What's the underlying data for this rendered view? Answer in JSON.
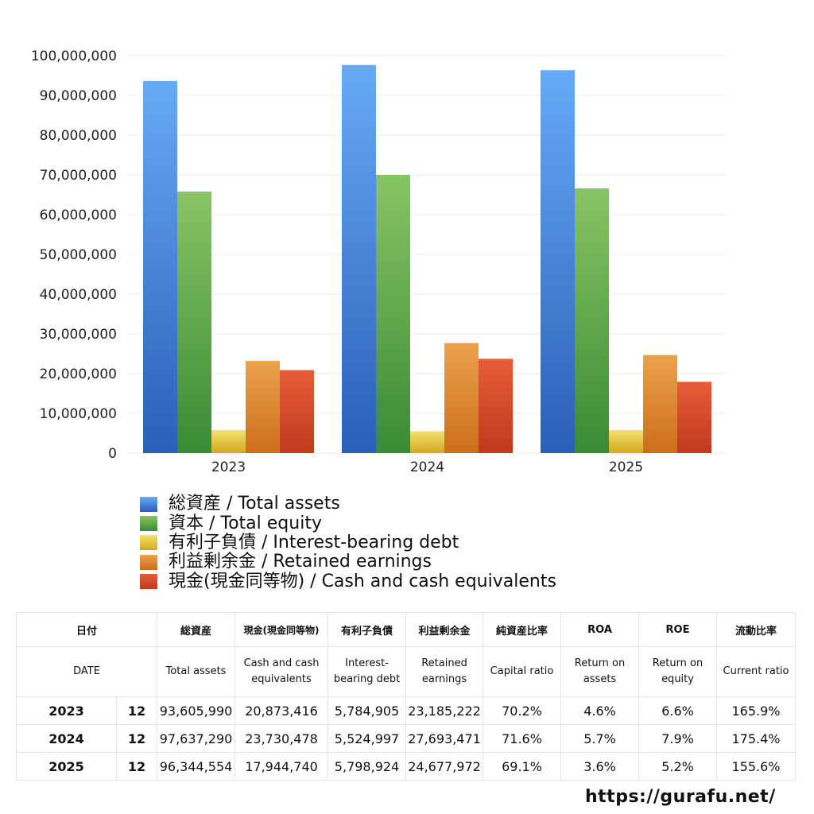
{
  "chart_data": {
    "type": "bar",
    "categories": [
      "2023",
      "2024",
      "2025"
    ],
    "ylim": [
      0,
      100000000
    ],
    "yticks": [
      0,
      10000000,
      20000000,
      30000000,
      40000000,
      50000000,
      60000000,
      70000000,
      80000000,
      90000000,
      100000000
    ],
    "ytick_labels": [
      "0",
      "10,000,000",
      "20,000,000",
      "30,000,000",
      "40,000,000",
      "50,000,000",
      "60,000,000",
      "70,000,000",
      "80,000,000",
      "90,000,000",
      "100,000,000"
    ],
    "grid": true,
    "legend_position": "bottom",
    "series": [
      {
        "name": "総資産 / Total assets",
        "values": [
          93605990,
          97637290,
          96344554
        ],
        "color": "#3f82e0",
        "color_top": "#66aaf5",
        "color_bottom": "#2a5fb8"
      },
      {
        "name": "資本 / Total equity",
        "values": [
          65800000,
          70000000,
          66600000
        ],
        "color": "#5aaa48",
        "color_top": "#88c463",
        "color_bottom": "#3a8a36"
      },
      {
        "name": "有利子負債 / Interest-bearing debt",
        "values": [
          5784905,
          5524997,
          5798924
        ],
        "color": "#e8c83a",
        "color_top": "#f4e070",
        "color_bottom": "#d4a820"
      },
      {
        "name": "利益剰余金 / Retained earnings",
        "values": [
          23185222,
          27693471,
          24677972
        ],
        "color": "#e08a30",
        "color_top": "#eba24a",
        "color_bottom": "#cc6e1c"
      },
      {
        "name": "現金(現金同等物)  /  Cash and cash equivalents",
        "values": [
          20873416,
          23730478,
          17944740
        ],
        "color": "#d9452a",
        "color_top": "#e85c38",
        "color_bottom": "#c03a1e"
      }
    ]
  },
  "table": {
    "header_jp": [
      "日付",
      "総資産",
      "現金(現金同等物)",
      "有利子負債",
      "利益剰余金",
      "純資産比率",
      "ROA",
      "ROE",
      "流動比率"
    ],
    "header_en": [
      "DATE",
      "Total assets",
      "Cash and cash equivalents",
      "Interest-bearing debt",
      "Retained earnings",
      "Capital ratio",
      "Return on assets",
      "Return on equity",
      "Current ratio"
    ],
    "rows": [
      {
        "year": "2023",
        "month": "12",
        "total_assets": "93,605,990",
        "cash": "20,873,416",
        "debt": "5,784,905",
        "retained": "23,185,222",
        "capital_ratio": "70.2%",
        "roa": "4.6%",
        "roe": "6.6%",
        "current_ratio": "165.9%"
      },
      {
        "year": "2024",
        "month": "12",
        "total_assets": "97,637,290",
        "cash": "23,730,478",
        "debt": "5,524,997",
        "retained": "27,693,471",
        "capital_ratio": "71.6%",
        "roa": "5.7%",
        "roe": "7.9%",
        "current_ratio": "175.4%"
      },
      {
        "year": "2025",
        "month": "12",
        "total_assets": "96,344,554",
        "cash": "17,944,740",
        "debt": "5,798,924",
        "retained": "24,677,972",
        "capital_ratio": "69.1%",
        "roa": "3.6%",
        "roe": "5.2%",
        "current_ratio": "155.6%"
      }
    ]
  },
  "footer": {
    "url": "https://gurafu.net/"
  }
}
